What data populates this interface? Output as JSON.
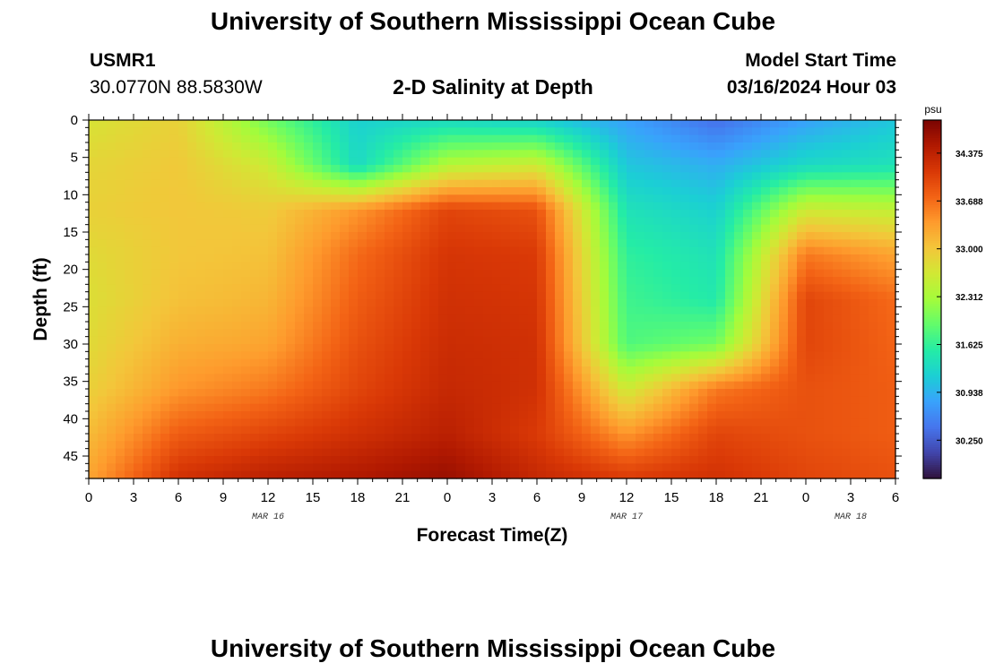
{
  "header": {
    "title": "University of Southern Mississippi Ocean Cube",
    "station_id": "USMR1",
    "coordinates": "30.0770N  88.5830W",
    "plot_title": "2-D Salinity at Depth",
    "start_label": "Model Start Time",
    "start_value": "03/16/2024 Hour 03"
  },
  "footer": {
    "title": "University of Southern Mississippi Ocean Cube"
  },
  "chart_data": {
    "type": "heatmap",
    "title": "2-D Salinity at Depth",
    "xlabel": "Forecast Time(Z)",
    "ylabel": "Depth (ft)",
    "x_tick_labels": [
      "0",
      "3",
      "6",
      "9",
      "12",
      "15",
      "18",
      "21",
      "0",
      "3",
      "6",
      "9",
      "12",
      "15",
      "18",
      "21",
      "0",
      "3",
      "6"
    ],
    "x_range_hours": [
      0,
      54
    ],
    "date_labels": [
      {
        "text": "MAR 16",
        "hour": 12
      },
      {
        "text": "MAR 17",
        "hour": 36
      },
      {
        "text": "MAR 18",
        "hour": 51
      }
    ],
    "y_ticks": [
      0,
      5,
      10,
      15,
      20,
      25,
      30,
      35,
      40,
      45
    ],
    "y_range": [
      0,
      48
    ],
    "y_inverted": true,
    "colorbar": {
      "unit": "psu",
      "ticks": [
        34.375,
        33.688,
        33.0,
        32.312,
        31.625,
        30.938,
        30.25
      ],
      "tick_labels": [
        "34.375",
        "33.688",
        "33.000",
        "32.312",
        "31.625",
        "30.938",
        "30.250"
      ],
      "range": [
        29.7,
        34.85
      ],
      "colormap": [
        "#30123b",
        "#4145ab",
        "#4675ed",
        "#39a2fc",
        "#1bcfd4",
        "#24eca6",
        "#61fc6c",
        "#a4fc3b",
        "#d1e834",
        "#f3c63a",
        "#fe9b2d",
        "#f36315",
        "#d93806",
        "#b11901",
        "#7a0402"
      ]
    },
    "salinity_grid_hours": [
      0,
      6,
      12,
      18,
      24,
      30,
      36,
      42,
      48,
      54
    ],
    "salinity_grid_depths": [
      0,
      6,
      12,
      18,
      24,
      30,
      36,
      42,
      48
    ],
    "salinity_grid": [
      [
        32.7,
        32.85,
        32.9,
        32.8,
        32.75,
        32.8,
        32.9,
        33.1,
        33.3
      ],
      [
        32.9,
        32.98,
        33.0,
        33.0,
        33.05,
        33.2,
        33.4,
        33.8,
        34.2
      ],
      [
        32.0,
        32.6,
        32.95,
        33.05,
        33.15,
        33.3,
        33.6,
        34.0,
        34.4
      ],
      [
        31.2,
        31.3,
        33.4,
        33.7,
        33.8,
        33.9,
        34.0,
        34.2,
        34.5
      ],
      [
        31.3,
        32.4,
        34.0,
        34.15,
        34.2,
        34.25,
        34.3,
        34.4,
        34.65
      ],
      [
        31.2,
        32.6,
        33.9,
        34.1,
        34.15,
        34.2,
        34.2,
        34.1,
        34.3
      ],
      [
        30.8,
        31.1,
        31.4,
        31.6,
        31.7,
        31.8,
        32.6,
        33.4,
        34.1
      ],
      [
        30.4,
        30.9,
        31.2,
        31.4,
        31.5,
        32.0,
        33.6,
        34.0,
        34.2
      ],
      [
        30.8,
        31.3,
        32.6,
        33.6,
        34.0,
        34.0,
        33.9,
        33.9,
        34.0
      ],
      [
        31.1,
        31.4,
        32.5,
        33.3,
        33.7,
        33.75,
        33.8,
        33.8,
        33.9
      ]
    ]
  }
}
